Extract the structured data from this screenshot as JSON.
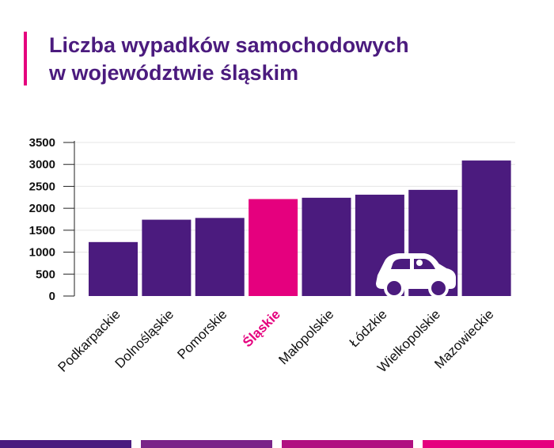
{
  "title": {
    "line1": "Liczba wypadków samochodowych",
    "line2": "w województwie śląskim"
  },
  "colors": {
    "bar": "#4b1b7e",
    "highlight": "#e5007e",
    "title": "#4b1b7e",
    "accent": "#e5007e",
    "footer": [
      "#4b1b7e",
      "#7a2488",
      "#b01080",
      "#e5007e"
    ]
  },
  "icon": "car-icon",
  "chart_data": {
    "type": "bar",
    "title": "Liczba wypadków samochodowych w województwie śląskim",
    "xlabel": "",
    "ylabel": "",
    "ylim": [
      0,
      3500
    ],
    "yticks": [
      0,
      500,
      1000,
      1500,
      2000,
      2500,
      3000,
      3500
    ],
    "grid": true,
    "legend": "none",
    "categories": [
      "Podkarpackie",
      "Dolnośląskie",
      "Pomorskie",
      "Śląskie",
      "Małopolskie",
      "Łódzkie",
      "Wielkopolskie",
      "Mazowieckie"
    ],
    "values": [
      1230,
      1740,
      1780,
      2210,
      2240,
      2310,
      2420,
      3090
    ],
    "highlight_index": 3
  }
}
